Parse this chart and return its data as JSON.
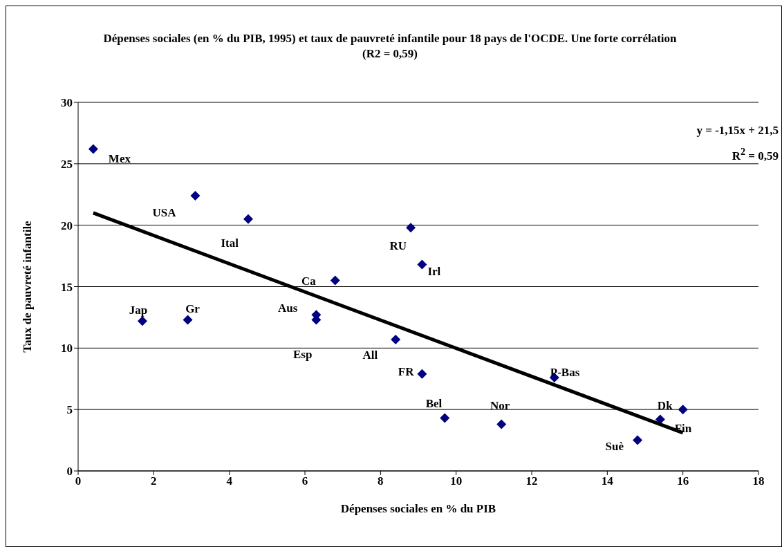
{
  "chart_data": {
    "type": "scatter",
    "title": "Dépenses sociales (en % du PIB, 1995) et taux de pauvreté infantile pour 18 pays de l'OCDE. Une forte corrélation (R2 = 0,59)",
    "xlabel": "Dépenses sociales en % du PIB",
    "ylabel": "Taux de pauvreté infantile",
    "xlim": [
      0,
      18
    ],
    "xticks": [
      0,
      2,
      4,
      6,
      8,
      10,
      12,
      14,
      16,
      18
    ],
    "ylim": [
      0,
      30
    ],
    "yticks": [
      0,
      5,
      10,
      15,
      20,
      25,
      30
    ],
    "grid": "y",
    "series": [
      {
        "marker": "diamond",
        "color": "#000080",
        "x": [
          0.4,
          3.1,
          4.5,
          6.8,
          6.3,
          6.3,
          1.7,
          2.9,
          8.4,
          9.1,
          8.8,
          9.1,
          9.7,
          11.2,
          12.6,
          14.8,
          15.4,
          16.0
        ],
        "values": [
          26.2,
          22.4,
          20.5,
          15.5,
          12.7,
          12.3,
          12.2,
          12.3,
          10.7,
          7.9,
          19.8,
          16.8,
          4.3,
          3.8,
          7.6,
          2.5,
          4.2,
          5.0
        ]
      },
      {
        "type": "line",
        "color": "#000000",
        "x": [
          0.4,
          16.0
        ],
        "values": [
          21.0,
          3.1
        ]
      }
    ],
    "annotations": [
      {
        "text": "Mex",
        "x": 0.4,
        "y": 26.2
      },
      {
        "text": "USA",
        "x": 3.1,
        "y": 22.4
      },
      {
        "text": "Ital",
        "x": 4.5,
        "y": 20.5
      },
      {
        "text": "Ca",
        "x": 6.8,
        "y": 15.5
      },
      {
        "text": "Aus",
        "x": 6.3,
        "y": 12.7
      },
      {
        "text": "Esp",
        "x": 6.3,
        "y": 12.3
      },
      {
        "text": "Jap",
        "x": 1.7,
        "y": 12.2
      },
      {
        "text": "Gr",
        "x": 2.9,
        "y": 12.3
      },
      {
        "text": "All",
        "x": 8.4,
        "y": 10.7
      },
      {
        "text": "FR",
        "x": 9.1,
        "y": 7.9
      },
      {
        "text": "RU",
        "x": 8.8,
        "y": 19.8
      },
      {
        "text": "Irl",
        "x": 9.1,
        "y": 16.8
      },
      {
        "text": "Bel",
        "x": 9.7,
        "y": 4.3
      },
      {
        "text": "Nor",
        "x": 11.2,
        "y": 3.8
      },
      {
        "text": "P-Bas",
        "x": 12.6,
        "y": 7.6
      },
      {
        "text": "Suè",
        "x": 14.8,
        "y": 2.5
      },
      {
        "text": "Dk",
        "x": 15.4,
        "y": 4.2
      },
      {
        "text": "Fin",
        "x": 16.0,
        "y": 5.0
      },
      "y = -1,15x + 21,5",
      "R$^{2}$ = 0,59"
    ]
  }
}
